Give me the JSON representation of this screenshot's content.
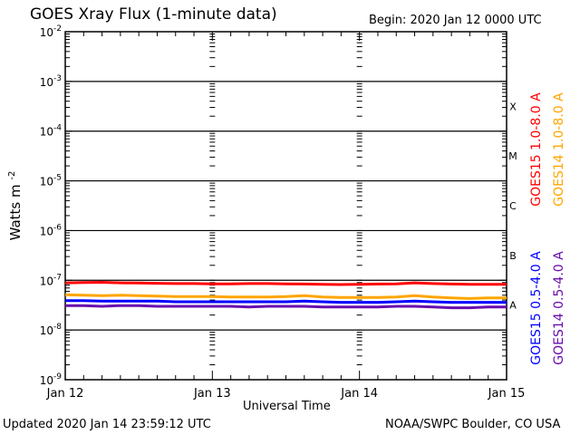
{
  "chart_data": {
    "type": "line",
    "title": "GOES Xray Flux (1-minute data)",
    "begin_label": "Begin:  2020 Jan 12 0000 UTC",
    "xlabel": "Universal Time",
    "ylabel": "Watts m",
    "ylabel_exponent": "-2",
    "y_scale": "log",
    "ylim": [
      1e-09,
      0.01
    ],
    "y_ticks": [
      {
        "base": "10",
        "exp": "-2",
        "value": 0.01
      },
      {
        "base": "10",
        "exp": "-3",
        "value": 0.001
      },
      {
        "base": "10",
        "exp": "-4",
        "value": 0.0001
      },
      {
        "base": "10",
        "exp": "-5",
        "value": 1e-05
      },
      {
        "base": "10",
        "exp": "-6",
        "value": 1e-06
      },
      {
        "base": "10",
        "exp": "-7",
        "value": 1e-07
      },
      {
        "base": "10",
        "exp": "-8",
        "value": 1e-08
      },
      {
        "base": "10",
        "exp": "-9",
        "value": 1e-09
      }
    ],
    "xlim_hours": [
      0,
      72
    ],
    "x_ticks": [
      {
        "label": "Jan 12",
        "hour": 0
      },
      {
        "label": "Jan 13",
        "hour": 24
      },
      {
        "label": "Jan 14",
        "hour": 48
      },
      {
        "label": "Jan 15",
        "hour": 72
      }
    ],
    "flare_classes": [
      {
        "label": "X",
        "value": 0.000316
      },
      {
        "label": "M",
        "value": 3.16e-05
      },
      {
        "label": "C",
        "value": 3.16e-06
      },
      {
        "label": "B",
        "value": 3.16e-07
      },
      {
        "label": "A",
        "value": 3.16e-08
      }
    ],
    "grid": "horizontal lines at each decade from 1e-8 to 1e-3",
    "x_hours": [
      0,
      3,
      6,
      9,
      12,
      15,
      18,
      21,
      24,
      27,
      30,
      33,
      36,
      39,
      42,
      45,
      48,
      51,
      54,
      57,
      60,
      63,
      66,
      69,
      72
    ],
    "series": [
      {
        "name": "GOES15 1.0-8.0 A",
        "color": "#ff0000",
        "values": [
          8.9e-08,
          9e-08,
          9.1e-08,
          8.9e-08,
          8.8e-08,
          8.7e-08,
          8.6e-08,
          8.6e-08,
          8.5e-08,
          8.5e-08,
          8.6e-08,
          8.6e-08,
          8.5e-08,
          8.4e-08,
          8.3e-08,
          8.2e-08,
          8.3e-08,
          8.4e-08,
          8.5e-08,
          8.9e-08,
          8.6e-08,
          8.4e-08,
          8.3e-08,
          8.3e-08,
          8.3e-08
        ]
      },
      {
        "name": "GOES14 1.0-8.0 A",
        "color": "#ffa500",
        "values": [
          5.1e-08,
          5e-08,
          4.9e-08,
          5e-08,
          4.9e-08,
          4.8e-08,
          4.7e-08,
          4.7e-08,
          4.7e-08,
          4.6e-08,
          4.6e-08,
          4.6e-08,
          4.7e-08,
          4.9e-08,
          4.6e-08,
          4.5e-08,
          4.5e-08,
          4.5e-08,
          4.6e-08,
          4.9e-08,
          4.6e-08,
          4.4e-08,
          4.3e-08,
          4.4e-08,
          4.4e-08
        ]
      },
      {
        "name": "GOES15 0.5-4.0 A",
        "color": "#0000ff",
        "values": [
          3.9e-08,
          3.9e-08,
          3.8e-08,
          3.8e-08,
          3.8e-08,
          3.8e-08,
          3.7e-08,
          3.7e-08,
          3.7e-08,
          3.7e-08,
          3.7e-08,
          3.7e-08,
          3.7e-08,
          3.8e-08,
          3.7e-08,
          3.6e-08,
          3.6e-08,
          3.6e-08,
          3.7e-08,
          3.8e-08,
          3.7e-08,
          3.6e-08,
          3.6e-08,
          3.6e-08,
          3.6e-08
        ]
      },
      {
        "name": "GOES14 0.5-4.0 A",
        "color": "#6a0dad",
        "values": [
          3.1e-08,
          3.1e-08,
          3e-08,
          3.1e-08,
          3.1e-08,
          3e-08,
          3e-08,
          3e-08,
          3e-08,
          3e-08,
          2.9e-08,
          3e-08,
          3e-08,
          3e-08,
          2.9e-08,
          2.9e-08,
          2.9e-08,
          2.9e-08,
          3e-08,
          3e-08,
          2.9e-08,
          2.8e-08,
          2.8e-08,
          2.9e-08,
          2.9e-08
        ]
      }
    ]
  },
  "footer": {
    "updated": "Updated 2020 Jan 14 23:59:12 UTC",
    "credit": "NOAA/SWPC Boulder, CO USA"
  }
}
